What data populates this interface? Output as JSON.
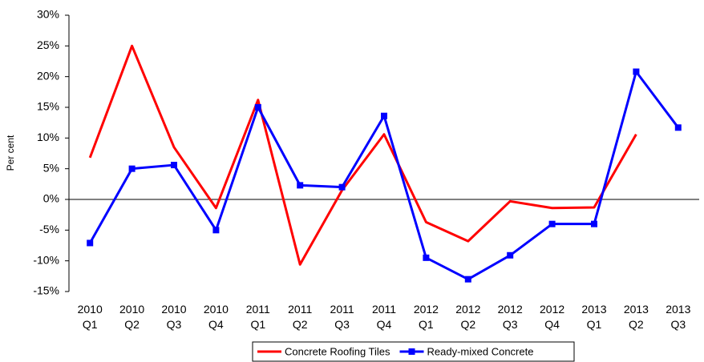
{
  "chart_data": {
    "type": "line",
    "y_label": "Per cent",
    "categories": [
      [
        "2010",
        "Q1"
      ],
      [
        "2010",
        "Q2"
      ],
      [
        "2010",
        "Q3"
      ],
      [
        "2010",
        "Q4"
      ],
      [
        "2011",
        "Q1"
      ],
      [
        "2011",
        "Q2"
      ],
      [
        "2011",
        "Q3"
      ],
      [
        "2011",
        "Q4"
      ],
      [
        "2012",
        "Q1"
      ],
      [
        "2012",
        "Q2"
      ],
      [
        "2012",
        "Q3"
      ],
      [
        "2012",
        "Q4"
      ],
      [
        "2013",
        "Q1"
      ],
      [
        "2013",
        "Q2"
      ],
      [
        "2013",
        "Q3"
      ]
    ],
    "series": [
      {
        "name": "Concrete Roofing Tiles",
        "color": "#ff0000",
        "marker": false,
        "values": [
          6.8,
          25.0,
          8.5,
          -1.4,
          16.2,
          -10.6,
          1.5,
          10.6,
          -3.7,
          -6.8,
          -0.3,
          -1.4,
          -1.3,
          10.6,
          null
        ]
      },
      {
        "name": "Ready-mixed Concrete",
        "color": "#0000ff",
        "marker": true,
        "values": [
          -7.1,
          5.0,
          5.6,
          -5.0,
          15.0,
          2.3,
          2.0,
          13.6,
          -9.5,
          -13.0,
          -9.1,
          -4.0,
          -4.0,
          20.8,
          11.7
        ]
      }
    ],
    "ylim": [
      -15,
      30
    ],
    "yticks": [
      {
        "value": -15,
        "label": "-15%"
      },
      {
        "value": -10,
        "label": "-10%"
      },
      {
        "value": -5,
        "label": "-5%"
      },
      {
        "value": 0,
        "label": "0%"
      },
      {
        "value": 5,
        "label": "5%"
      },
      {
        "value": 10,
        "label": "10%"
      },
      {
        "value": 15,
        "label": "15%"
      },
      {
        "value": 20,
        "label": "20%"
      },
      {
        "value": 25,
        "label": "25%"
      },
      {
        "value": 30,
        "label": "30%"
      }
    ],
    "grid": false,
    "legend": "bottom"
  }
}
